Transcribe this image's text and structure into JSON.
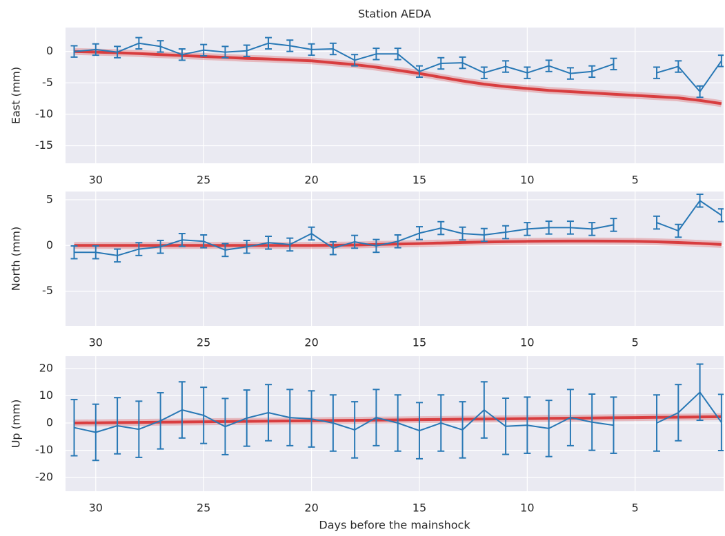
{
  "chart_data": [
    {
      "type": "line",
      "title": "Station AEDA",
      "ylabel": "East (mm)",
      "x": [
        31,
        30,
        29,
        28,
        27,
        26,
        25,
        24,
        23,
        22,
        21,
        20,
        19,
        18,
        17,
        16,
        15,
        14,
        13,
        12,
        11,
        10,
        9,
        8,
        7,
        6,
        5,
        4,
        3,
        2,
        1
      ],
      "xlim": [
        31.4,
        0.9
      ],
      "xticks": [
        30,
        25,
        20,
        15,
        10,
        5
      ],
      "ylim": [
        -17.8,
        3.8
      ],
      "yticks": [
        -15,
        -10,
        -5,
        0
      ],
      "grid": true,
      "series": [
        {
          "color": "#d62728",
          "values": [
            0,
            -0.1,
            -0.2,
            -0.35,
            -0.5,
            -0.65,
            -0.8,
            -0.95,
            -1.1,
            -1.2,
            -1.35,
            -1.5,
            -1.8,
            -2.1,
            -2.5,
            -3.0,
            -3.5,
            -4.1,
            -4.7,
            -5.2,
            -5.6,
            -5.9,
            -6.2,
            -6.4,
            -6.6,
            -6.8,
            -7.0,
            -7.2,
            -7.4,
            -7.8,
            -8.3
          ]
        },
        {
          "color": "#2878b5",
          "values": [
            0,
            0.3,
            -0.1,
            1.3,
            0.8,
            -0.5,
            0.2,
            -0.1,
            0.1,
            1.3,
            0.9,
            0.3,
            0.4,
            -1.4,
            -0.4,
            -0.4,
            -3.2,
            -1.9,
            -1.8,
            -3.4,
            -2.4,
            -3.4,
            -2.3,
            -3.5,
            -3.2,
            -2.0,
            null,
            -3.4,
            -2.4,
            -6.4,
            -1.5
          ],
          "errors": [
            0.9,
            0.9,
            0.9,
            0.9,
            0.9,
            0.9,
            0.9,
            0.9,
            0.9,
            0.9,
            0.9,
            0.9,
            0.9,
            0.9,
            0.9,
            0.9,
            0.9,
            0.9,
            0.9,
            0.9,
            0.9,
            0.9,
            0.9,
            0.9,
            0.9,
            0.9,
            null,
            0.9,
            0.9,
            0.9,
            0.9
          ]
        }
      ]
    },
    {
      "type": "line",
      "ylabel": "North (mm)",
      "x": [
        31,
        30,
        29,
        28,
        27,
        26,
        25,
        24,
        23,
        22,
        21,
        20,
        19,
        18,
        17,
        16,
        15,
        14,
        13,
        12,
        11,
        10,
        9,
        8,
        7,
        6,
        5,
        4,
        3,
        2,
        1
      ],
      "xlim": [
        31.4,
        0.9
      ],
      "xticks": [
        30,
        25,
        20,
        15,
        10,
        5
      ],
      "ylim": [
        -8.8,
        5.9
      ],
      "yticks": [
        -5,
        0,
        5
      ],
      "grid": true,
      "series": [
        {
          "color": "#d62728",
          "values": [
            0,
            0,
            0,
            0,
            0,
            0,
            0,
            0,
            0,
            0,
            0,
            0,
            0.02,
            0.05,
            0.1,
            0.15,
            0.2,
            0.27,
            0.33,
            0.38,
            0.42,
            0.45,
            0.47,
            0.48,
            0.48,
            0.47,
            0.45,
            0.4,
            0.32,
            0.22,
            0.1
          ]
        },
        {
          "color": "#2878b5",
          "values": [
            -0.75,
            -0.75,
            -1.1,
            -0.4,
            -0.15,
            0.6,
            0.45,
            -0.5,
            -0.15,
            0.3,
            0.1,
            1.3,
            -0.3,
            0.4,
            -0.05,
            0.45,
            1.35,
            1.9,
            1.3,
            1.15,
            1.45,
            1.8,
            1.95,
            1.95,
            1.8,
            2.25,
            null,
            2.5,
            1.6,
            4.9,
            3.3
          ],
          "errors": [
            0.7,
            0.7,
            0.7,
            0.7,
            0.7,
            0.7,
            0.7,
            0.7,
            0.7,
            0.7,
            0.7,
            0.7,
            0.7,
            0.7,
            0.7,
            0.7,
            0.7,
            0.7,
            0.7,
            0.7,
            0.7,
            0.7,
            0.7,
            0.7,
            0.7,
            0.7,
            null,
            0.7,
            0.7,
            0.7,
            0.7
          ]
        }
      ]
    },
    {
      "type": "line",
      "ylabel": "Up (mm)",
      "xlabel": "Days before the mainshock",
      "x": [
        31,
        30,
        29,
        28,
        27,
        26,
        25,
        24,
        23,
        22,
        21,
        20,
        19,
        18,
        17,
        16,
        15,
        14,
        13,
        12,
        11,
        10,
        9,
        8,
        7,
        6,
        5,
        4,
        3,
        2,
        1
      ],
      "xlim": [
        31.4,
        0.9
      ],
      "xticks": [
        30,
        25,
        20,
        15,
        10,
        5
      ],
      "ylim": [
        -25,
        24.5
      ],
      "yticks": [
        -20,
        -10,
        0,
        10,
        20
      ],
      "grid": true,
      "series": [
        {
          "color": "#d62728",
          "values": [
            0,
            0.08,
            0.15,
            0.23,
            0.31,
            0.38,
            0.46,
            0.54,
            0.61,
            0.69,
            0.77,
            0.84,
            0.92,
            1.0,
            1.07,
            1.15,
            1.23,
            1.3,
            1.38,
            1.46,
            1.53,
            1.61,
            1.69,
            1.76,
            1.84,
            1.92,
            1.99,
            2.07,
            2.15,
            2.22,
            2.3
          ]
        },
        {
          "color": "#2878b5",
          "values": [
            -1.7,
            -3.4,
            -1,
            -2.3,
            0.8,
            4.8,
            2.8,
            -1.3,
            1.8,
            3.8,
            2,
            1.5,
            0,
            -2.5,
            2,
            0,
            -2.8,
            0,
            -2.5,
            4.8,
            -1.2,
            -0.8,
            -2,
            2,
            0.3,
            -0.8,
            null,
            0,
            3.8,
            11.3,
            0.2
          ],
          "errors": [
            10.3,
            10.3,
            10.3,
            10.3,
            10.3,
            10.3,
            10.3,
            10.3,
            10.3,
            10.3,
            10.3,
            10.3,
            10.3,
            10.3,
            10.3,
            10.3,
            10.3,
            10.3,
            10.3,
            10.3,
            10.3,
            10.3,
            10.3,
            10.3,
            10.3,
            10.3,
            null,
            10.3,
            10.3,
            10.3,
            10.3
          ]
        }
      ]
    }
  ]
}
